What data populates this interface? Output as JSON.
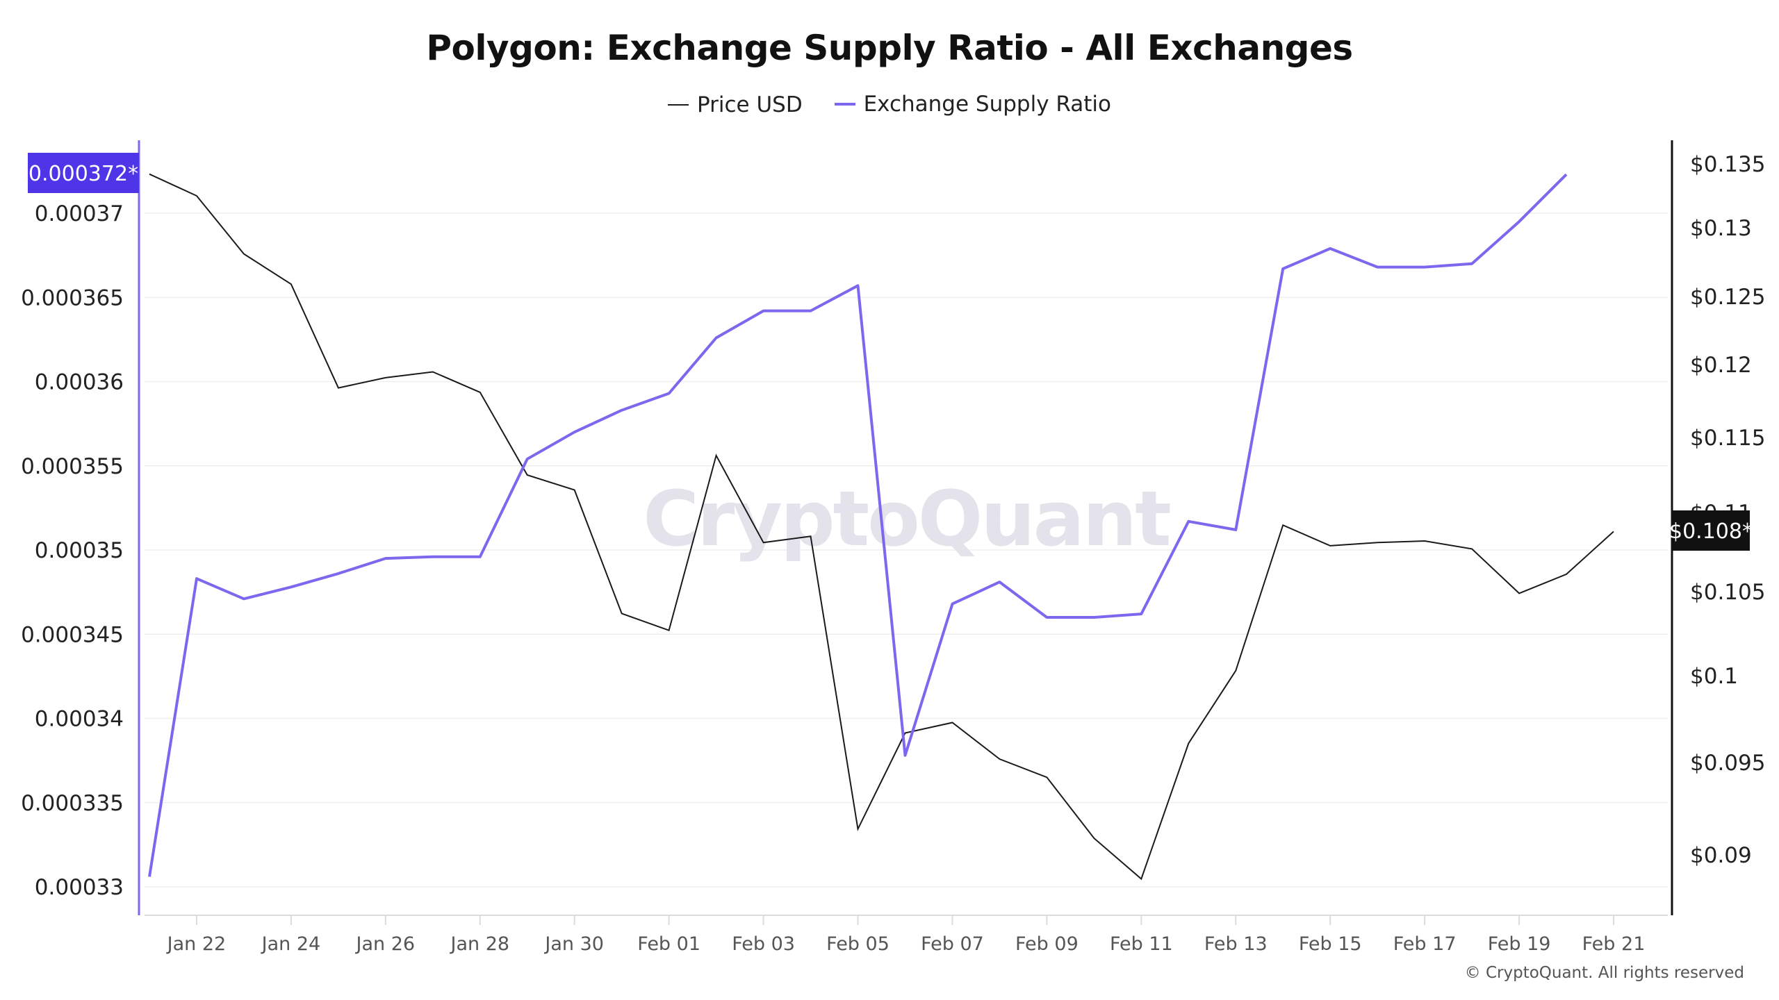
{
  "title": "Polygon: Exchange Supply Ratio - All Exchanges",
  "legend": [
    {
      "label": "Price USD",
      "color": "#1a1a1a"
    },
    {
      "label": "Exchange Supply Ratio",
      "color": "#7b68ee"
    }
  ],
  "watermark": "CryptoQuant",
  "copyright": "© CryptoQuant. All rights reserved",
  "colors": {
    "ratio_line": "#7b68ee",
    "price_line": "#1a1a1a",
    "left_axis": "#7b68ee",
    "right_axis": "#111111",
    "left_badge_bg": "#4f35e8",
    "right_badge_bg": "#111111",
    "grid": "#efefef"
  },
  "left_axis": {
    "ticks": [
      "0.00037",
      "0.000365",
      "0.00036",
      "0.000355",
      "0.00035",
      "0.000345",
      "0.00034",
      "0.000335",
      "0.00033"
    ],
    "badge": "0.000372*"
  },
  "right_axis": {
    "ticks": [
      "$0.135",
      "$0.13",
      "$0.125",
      "$0.12",
      "$0.115",
      "$0.11",
      "$0.105",
      "$0.1",
      "$0.095",
      "$0.09"
    ],
    "badge": "$0.108*"
  },
  "x_axis": {
    "labels": [
      "Jan 22",
      "Jan 24",
      "Jan 26",
      "Jan 28",
      "Jan 30",
      "Feb 01",
      "Feb 03",
      "Feb 05",
      "Feb 07",
      "Feb 09",
      "Feb 11",
      "Feb 13",
      "Feb 15",
      "Feb 17",
      "Feb 19",
      "Feb 21"
    ]
  },
  "chart_data": {
    "type": "line",
    "title": "Polygon: Exchange Supply Ratio - All Exchanges",
    "xlabel": "",
    "ylabel_left": "Exchange Supply Ratio",
    "ylabel_right": "Price USD",
    "legend_position": "top",
    "grid": true,
    "x": [
      "Jan 21",
      "Jan 22",
      "Jan 23",
      "Jan 24",
      "Jan 25",
      "Jan 26",
      "Jan 27",
      "Jan 28",
      "Jan 29",
      "Jan 30",
      "Jan 31",
      "Feb 01",
      "Feb 02",
      "Feb 03",
      "Feb 04",
      "Feb 05",
      "Feb 06",
      "Feb 07",
      "Feb 08",
      "Feb 09",
      "Feb 10",
      "Feb 11",
      "Feb 12",
      "Feb 13",
      "Feb 14",
      "Feb 15",
      "Feb 16",
      "Feb 17",
      "Feb 18",
      "Feb 19",
      "Feb 20",
      "Feb 21"
    ],
    "ylim_left": [
      0.000328,
      0.0003725
    ],
    "ylim_right": [
      0.087,
      0.136
    ],
    "series": [
      {
        "name": "Exchange Supply Ratio",
        "axis": "left",
        "color": "#7b68ee",
        "values": [
          0.0003306,
          0.0003483,
          0.0003471,
          0.0003478,
          0.0003486,
          0.0003495,
          0.0003496,
          0.0003496,
          0.0003554,
          0.000357,
          0.0003583,
          0.0003593,
          0.0003626,
          0.0003642,
          0.0003642,
          0.0003657,
          0.0003378,
          0.0003468,
          0.0003481,
          0.000346,
          0.000346,
          0.0003462,
          0.0003517,
          0.0003512,
          0.0003667,
          0.0003679,
          0.0003668,
          0.0003668,
          0.000367,
          0.0003695,
          0.0003723,
          null
        ]
      },
      {
        "name": "Price USD",
        "axis": "right",
        "color": "#1a1a1a",
        "values": [
          0.1342,
          0.1325,
          0.1281,
          0.1259,
          0.1184,
          0.1191,
          0.1195,
          0.1181,
          0.1125,
          0.1115,
          0.1037,
          0.1027,
          0.1138,
          0.1081,
          0.1085,
          0.0914,
          0.0967,
          0.0973,
          0.0952,
          0.0942,
          0.0909,
          0.0887,
          0.0961,
          0.1003,
          0.1092,
          0.1079,
          0.1081,
          0.1082,
          0.1077,
          0.1049,
          0.1061,
          0.1088
        ]
      }
    ],
    "annotations": [
      "0.000372* (latest Exchange Supply Ratio)",
      "$0.108* (latest Price USD)"
    ]
  }
}
